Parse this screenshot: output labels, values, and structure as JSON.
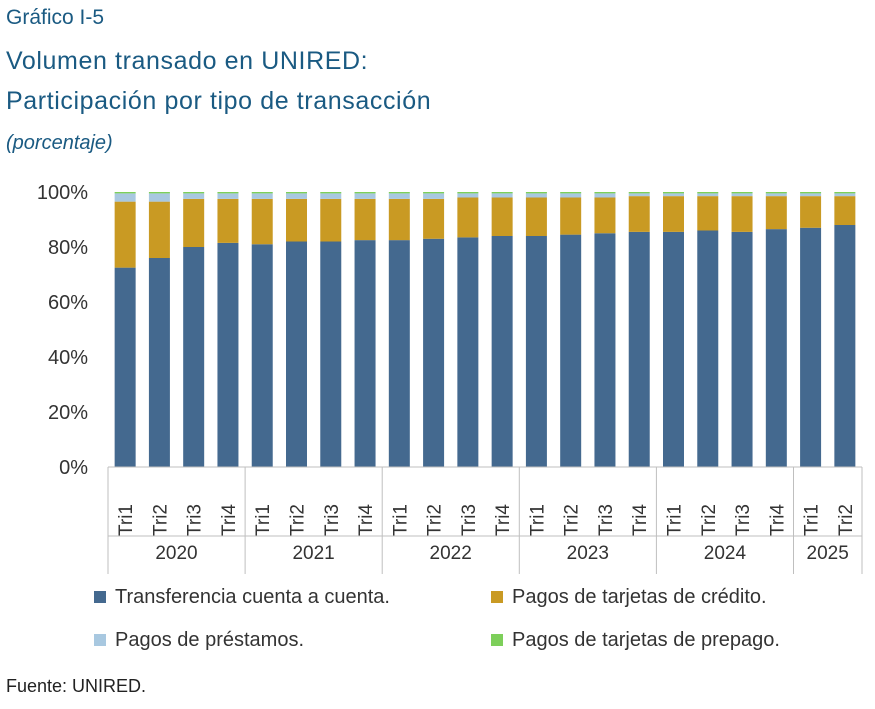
{
  "header": {
    "figure_number": "Gráfico I-5",
    "title_line1": "Volumen transado en UNIRED:",
    "title_line2": "Participación por tipo de transacción",
    "subtitle": "(porcentaje)"
  },
  "footer": {
    "source": "Fuente: UNIRED."
  },
  "chart_data": {
    "type": "bar",
    "stacked": true,
    "ylim": [
      0,
      100
    ],
    "yticks": [
      0,
      20,
      40,
      60,
      80,
      100
    ],
    "ytick_labels": [
      "0%",
      "20%",
      "40%",
      "60%",
      "80%",
      "100%"
    ],
    "grid": false,
    "legend_position": "bottom",
    "categories": [
      "Tri1",
      "Tri2",
      "Tri3",
      "Tri4",
      "Tri1",
      "Tri2",
      "Tri3",
      "Tri4",
      "Tri1",
      "Tri2",
      "Tri3",
      "Tri4",
      "Tri1",
      "Tri2",
      "Tri3",
      "Tri4",
      "Tri1",
      "Tri2",
      "Tri3",
      "Tri4",
      "Tri1",
      "Tri2"
    ],
    "groups": [
      {
        "label": "2020",
        "count": 4
      },
      {
        "label": "2021",
        "count": 4
      },
      {
        "label": "2022",
        "count": 4
      },
      {
        "label": "2023",
        "count": 4
      },
      {
        "label": "2024",
        "count": 4
      },
      {
        "label": "2025",
        "count": 2
      }
    ],
    "series": [
      {
        "name": "Transferencia cuenta a cuenta.",
        "color": "#44698f",
        "values": [
          72.5,
          76,
          80,
          81.5,
          81,
          82,
          82,
          82.5,
          82.5,
          83,
          83.5,
          84,
          84,
          84.5,
          85,
          85.5,
          85.5,
          86,
          85.5,
          86.5,
          87,
          88
        ]
      },
      {
        "name": "Pagos de tarjetas de crédito.",
        "color": "#c99a23",
        "values": [
          24,
          20.5,
          17.5,
          16,
          16.5,
          15.5,
          15.5,
          15,
          15,
          14.5,
          14.5,
          14,
          14,
          13.5,
          13,
          13,
          13,
          12.5,
          13,
          12,
          11.5,
          10.5
        ]
      },
      {
        "name": "Pagos de préstamos.",
        "color": "#a8c8e0",
        "values": [
          3,
          3,
          2,
          2,
          2,
          2,
          2,
          2,
          2,
          2,
          1.5,
          1.5,
          1.5,
          1.5,
          1.5,
          1,
          1,
          1,
          1,
          1,
          1,
          1
        ]
      },
      {
        "name": "Pagos de tarjetas de prepago.",
        "color": "#7dcf5a",
        "values": [
          0.5,
          0.5,
          0.5,
          0.5,
          0.5,
          0.5,
          0.5,
          0.5,
          0.5,
          0.5,
          0.5,
          0.5,
          0.5,
          0.5,
          0.5,
          0.5,
          0.5,
          0.5,
          0.5,
          0.5,
          0.5,
          0.5
        ]
      }
    ]
  }
}
